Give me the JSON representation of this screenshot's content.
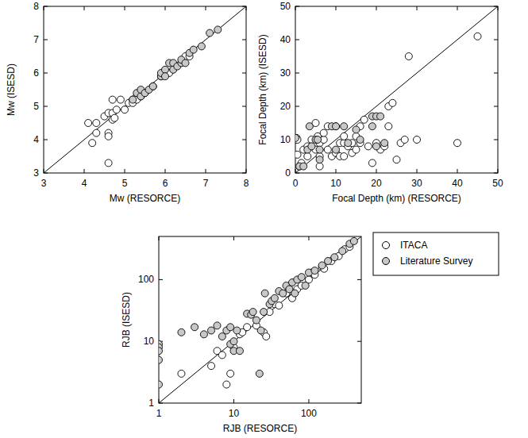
{
  "chart_data": [
    {
      "type": "scatter",
      "xlabel": "Mw (RESORCE)",
      "ylabel": "Mw (ISESD)",
      "xlim": [
        3,
        8
      ],
      "ylim": [
        3,
        8
      ],
      "xticks": [
        3,
        4,
        5,
        6,
        7,
        8
      ],
      "yticks": [
        3,
        4,
        5,
        6,
        7,
        8
      ],
      "series": [
        {
          "color": "#ffffff",
          "marker": "circle",
          "x": [
            4.1,
            4.2,
            4.3,
            4.3,
            4.5,
            4.6,
            4.6,
            4.6,
            4.6,
            4.7,
            4.7,
            4.7,
            4.75,
            4.8,
            4.9,
            5.0,
            5.1,
            5.2,
            5.2,
            5.3,
            5.3,
            5.4,
            5.5,
            5.4,
            5.7,
            5.9,
            6.1,
            6.5,
            6.6
          ],
          "values": [
            4.5,
            3.9,
            4.5,
            4.2,
            4.7,
            4.2,
            4.1,
            3.3,
            4.8,
            4.8,
            4.6,
            5.2,
            4.65,
            4.9,
            5.2,
            4.9,
            5.1,
            5.2,
            5.1,
            5.3,
            5.2,
            5.3,
            5.4,
            5.4,
            5.6,
            5.9,
            6.0,
            6.5,
            6.5
          ]
        },
        {
          "color": "#c8c8c8",
          "marker": "circle",
          "x": [
            5.2,
            5.3,
            5.4,
            5.4,
            5.5,
            5.6,
            5.7,
            5.9,
            5.9,
            6.0,
            6.0,
            6.1,
            6.2,
            6.2,
            6.3,
            6.4,
            6.4,
            6.5,
            6.6,
            6.7,
            6.9,
            7.1,
            7.3
          ],
          "values": [
            5.2,
            5.4,
            5.3,
            5.5,
            5.4,
            5.5,
            5.6,
            5.9,
            6.0,
            6.1,
            5.9,
            6.3,
            6.3,
            6.1,
            6.2,
            6.3,
            6.4,
            6.3,
            6.6,
            6.7,
            6.8,
            7.2,
            7.3
          ]
        },
        {
          "type": "line",
          "color": "#000000",
          "line_style": "solid",
          "x": [
            3,
            8
          ],
          "values": [
            3,
            8
          ]
        }
      ]
    },
    {
      "type": "scatter",
      "xlabel": "Focal Depth (km) (RESORCE)",
      "ylabel": "Focal Depth (km) (ISESD)",
      "xlim": [
        0,
        50
      ],
      "ylim": [
        0,
        50
      ],
      "xticks": [
        0,
        10,
        20,
        30,
        40,
        50
      ],
      "yticks": [
        0,
        10,
        20,
        30,
        40,
        50
      ],
      "series": [
        {
          "color": "#ffffff",
          "marker": "circle",
          "x": [
            0,
            0.3,
            0.5,
            0.5,
            1,
            1.5,
            2,
            3,
            3,
            4,
            5,
            5,
            5.5,
            6,
            6,
            6,
            7,
            7,
            8,
            8,
            9,
            10,
            10,
            11,
            11,
            12,
            12,
            12,
            13,
            14,
            14,
            15,
            15,
            16,
            16,
            17,
            18,
            19,
            20,
            21,
            22,
            23,
            23,
            24,
            25,
            26,
            27,
            28,
            30,
            40,
            45
          ],
          "values": [
            10,
            10.5,
            10,
            5.5,
            2,
            3,
            7,
            8,
            5,
            10,
            15,
            7,
            11,
            2,
            5,
            9,
            10,
            12,
            14,
            7,
            5,
            6,
            14,
            5,
            9,
            5,
            9,
            11,
            8,
            6,
            9,
            7,
            11,
            14,
            9,
            16,
            8,
            3,
            9,
            7,
            8,
            14,
            20,
            21,
            4,
            9,
            10,
            35,
            10,
            9,
            41
          ]
        },
        {
          "color": "#c8c8c8",
          "marker": "circle",
          "x": [
            0,
            1,
            2,
            3,
            3.5,
            4,
            5,
            5.5,
            6,
            6,
            9,
            10,
            10,
            12,
            13,
            15,
            16,
            19,
            19,
            20,
            20,
            21,
            22
          ],
          "values": [
            10.5,
            2,
            2,
            7,
            14,
            8,
            10,
            10,
            7,
            4,
            14,
            14,
            7,
            14,
            9,
            13,
            10,
            17,
            14,
            8,
            17,
            17,
            9
          ]
        },
        {
          "type": "line",
          "color": "#000000",
          "line_style": "solid",
          "x": [
            0,
            50
          ],
          "values": [
            0,
            50
          ]
        }
      ]
    },
    {
      "type": "scatter",
      "xlabel": "RJB (RESORCE)",
      "ylabel": "RJB (ISESD)",
      "log": true,
      "legend": "right",
      "xlim": [
        1,
        500
      ],
      "ylim": [
        1,
        500
      ],
      "xticks": [
        1,
        10,
        100
      ],
      "yticks": [
        1,
        10,
        100
      ],
      "series": [
        {
          "name": "ITACA",
          "color": "#ffffff",
          "marker": "circle",
          "x": [
            2,
            5,
            6,
            7,
            8,
            9,
            10,
            12,
            13,
            15,
            20,
            25,
            27,
            30,
            35,
            40,
            50,
            60,
            70,
            80,
            100,
            110,
            120,
            150,
            160,
            200,
            250,
            300,
            350
          ],
          "values": [
            3,
            4,
            7,
            6,
            2,
            3,
            8,
            13,
            14,
            17,
            18,
            14,
            12,
            30,
            40,
            38,
            60,
            50,
            70,
            80,
            100,
            130,
            120,
            160,
            150,
            200,
            240,
            310,
            340
          ]
        },
        {
          "name": "Literature Survey",
          "color": "#c8c8c8",
          "marker": "circle",
          "x": [
            1,
            1,
            1,
            1,
            1,
            2,
            3,
            4,
            5,
            6,
            7,
            8,
            9,
            9,
            10,
            10,
            11,
            12,
            15,
            17,
            18,
            20,
            22,
            23,
            25,
            26,
            30,
            32,
            35,
            40,
            45,
            50,
            55,
            60,
            65,
            70,
            80,
            90,
            100,
            120,
            150,
            180,
            220,
            280,
            350,
            400
          ],
          "values": [
            9,
            8,
            7,
            5,
            2,
            14,
            17,
            13,
            15,
            18,
            12,
            15,
            17,
            9,
            10,
            7,
            15,
            7,
            28,
            27,
            30,
            22,
            3,
            15,
            30,
            60,
            40,
            45,
            50,
            65,
            60,
            80,
            70,
            90,
            60,
            100,
            110,
            80,
            130,
            140,
            170,
            200,
            230,
            290,
            380,
            420
          ]
        },
        {
          "type": "line",
          "color": "#000000",
          "line_style": "solid",
          "x": [
            1,
            500
          ],
          "values": [
            1,
            500
          ]
        }
      ]
    }
  ]
}
